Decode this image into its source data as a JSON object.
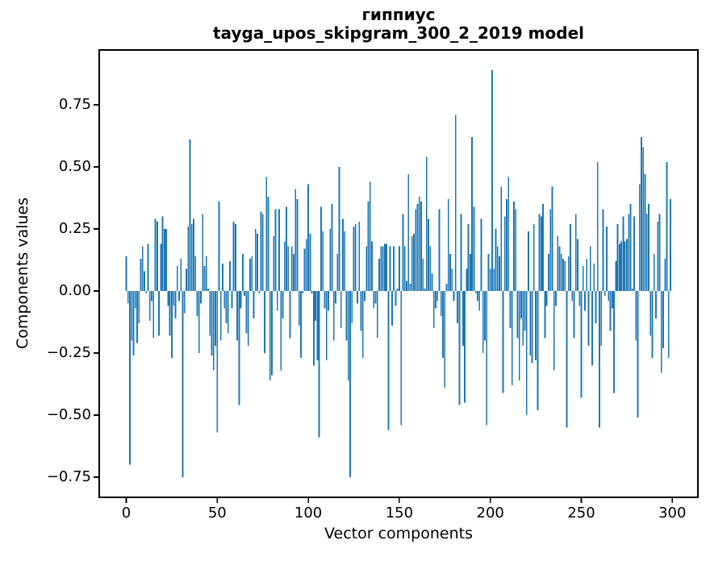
{
  "figure": {
    "title_line1": "гиппиус",
    "title_line2": "tayga_upos_skipgram_300_2_2019 model"
  },
  "chart_data": {
    "type": "bar",
    "title": "гиппиус",
    "subtitle": "tayga_upos_skipgram_300_2_2019 model",
    "xlabel": "Vector components",
    "ylabel": "Components values",
    "x_description": "component index 0..299",
    "bar_color": "#1f77b4",
    "grid": false,
    "legend_position": "none",
    "xlim": [
      -14.95,
      313.95
    ],
    "ylim": [
      -0.831,
      0.971
    ],
    "x_ticks": [
      0,
      50,
      100,
      150,
      200,
      250,
      300
    ],
    "y_tick_labels": [
      "0.75",
      "0.50",
      "0.25",
      "0.00",
      "−0.25",
      "−0.50",
      "−0.75"
    ],
    "y_tick_values": [
      0.75,
      0.5,
      0.25,
      0,
      -0.25,
      -0.5,
      -0.75
    ],
    "values": [
      0.14,
      -0.05,
      -0.7,
      -0.2,
      -0.26,
      -0.07,
      -0.21,
      -0.13,
      0.13,
      0.18,
      0.08,
      -0.01,
      0.19,
      -0.12,
      -0.04,
      -0.19,
      0.29,
      0.28,
      -0.18,
      0.19,
      0.3,
      0.25,
      0.25,
      -0.06,
      -0.18,
      -0.27,
      -0.06,
      -0.11,
      0.1,
      -0.04,
      0.13,
      -0.75,
      -0.09,
      0.09,
      0.26,
      0.61,
      0.27,
      0.29,
      0.14,
      -0.1,
      -0.25,
      -0.05,
      0.31,
      0.1,
      0.14,
      0.01,
      -0.18,
      -0.26,
      -0.32,
      -0.22,
      -0.57,
      0.36,
      -0.2,
      0.11,
      -0.07,
      -0.13,
      -0.17,
      0.12,
      -0.07,
      0.28,
      0.27,
      -0.2,
      -0.46,
      -0.07,
      0.15,
      -0.02,
      -0.17,
      -0.22,
      0.13,
      0.14,
      -0.11,
      0.25,
      0.23,
      -0.01,
      0.32,
      0.31,
      -0.25,
      0.46,
      0.38,
      -0.36,
      -0.34,
      0.22,
      0.33,
      -0.08,
      0.33,
      -0.32,
      -0.11,
      0.2,
      0.34,
      0.18,
      -0.19,
      0.18,
      0.15,
      0.41,
      0.37,
      -0.14,
      -0.27,
      -0.01,
      0.17,
      0.21,
      0.43,
      0.23,
      -0.01,
      -0.3,
      -0.12,
      -0.28,
      -0.59,
      0.34,
      0.24,
      -0.07,
      -0.28,
      -0.08,
      0.25,
      0.35,
      -0.2,
      -0.05,
      0.15,
      0.5,
      -0.15,
      0.29,
      0.24,
      -0.2,
      -0.36,
      -0.75,
      -0.13,
      0.26,
      0.27,
      -0.05,
      0.28,
      -0.16,
      -0.27,
      -0.04,
      0.18,
      0.36,
      0.44,
      0.2,
      -0.07,
      -0.05,
      -0.19,
      0.13,
      0.18,
      0.18,
      0.19,
      0.19,
      -0.56,
      0.18,
      -0.14,
      0.18,
      -0.06,
      0.01,
      0.18,
      -0.54,
      0.31,
      0.18,
      0.04,
      0.47,
      0.03,
      0.22,
      0.23,
      0.33,
      0.35,
      0.38,
      0.36,
      0.13,
      0.01,
      0.54,
      0.29,
      0.18,
      0.07,
      -0.15,
      -0.07,
      -0.04,
      0.33,
      -0.1,
      -0.27,
      -0.39,
      0.03,
      0.37,
      0.15,
      0.09,
      -0.04,
      0.71,
      -0.13,
      -0.46,
      0.31,
      -0.22,
      -0.45,
      0.09,
      0.27,
      0.15,
      0.62,
      0.34,
      -0.01,
      -0.04,
      -0.08,
      0.29,
      -0.25,
      -0.2,
      -0.54,
      0.15,
      0.09,
      0.89,
      0.09,
      0.25,
      0.18,
      0.14,
      0.42,
      -0.41,
      0.3,
      0.37,
      0.46,
      -0.15,
      -0.38,
      0.36,
      0.33,
      -0.19,
      -0.36,
      -0.11,
      -0.22,
      -0.16,
      -0.5,
      0.24,
      -0.26,
      -0.29,
      0.27,
      -0.28,
      -0.48,
      0.31,
      0.3,
      0.35,
      -0.19,
      -0.06,
      0.15,
      0.33,
      0.42,
      -0.32,
      -0.06,
      0.22,
      0.18,
      0.15,
      0.13,
      0.12,
      -0.55,
      0.14,
      0.27,
      -0.04,
      -0.19,
      0.31,
      0.21,
      -0.06,
      -0.43,
      0.1,
      -0.08,
      0.13,
      -0.22,
      0.18,
      -0.3,
      0.11,
      -0.13,
      0.52,
      -0.55,
      -0.22,
      0.33,
      -0.02,
      0.26,
      -0.04,
      -0.16,
      -0.07,
      -0.41,
      0.12,
      0.27,
      0.19,
      0.2,
      0.3,
      0.2,
      0.21,
      0.31,
      0.35,
      0.01,
      0.3,
      -0.2,
      -0.51,
      0.43,
      0.62,
      0.58,
      0.47,
      0.31,
      0.35,
      -0.18,
      -0.27,
      0.15,
      -0.11,
      0.28,
      0.31,
      -0.33,
      -0.23,
      0.13,
      0.52,
      -0.27,
      0.37
    ]
  }
}
